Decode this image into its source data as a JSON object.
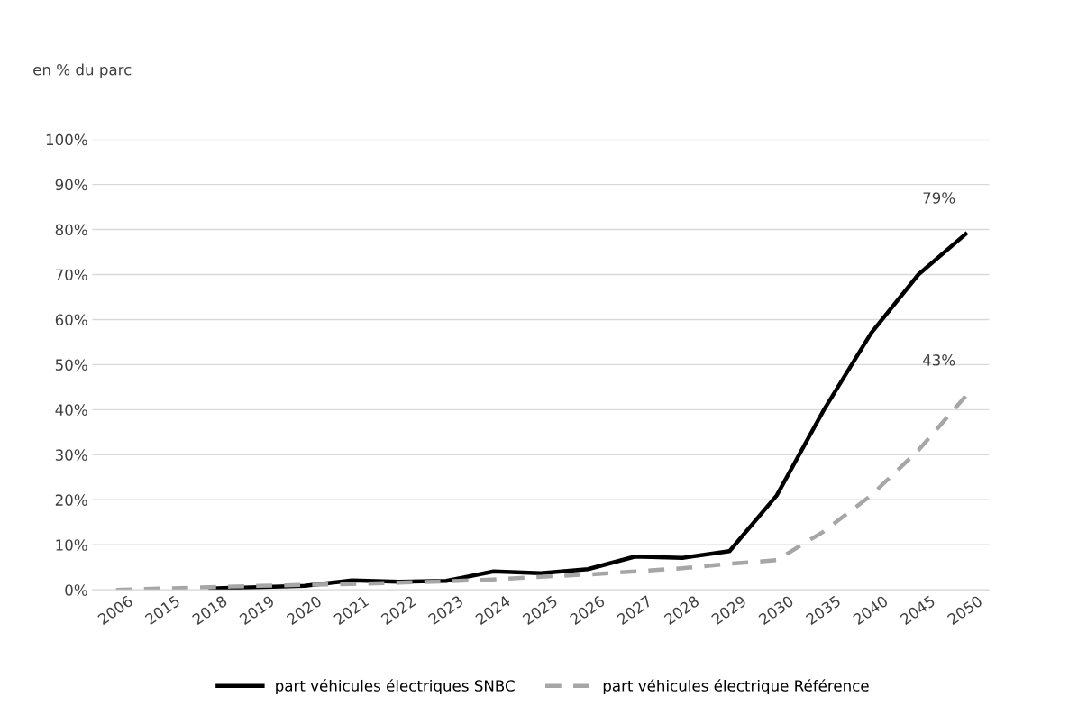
{
  "chart_data": {
    "type": "line",
    "ylabel": "en % du parc",
    "categories": [
      "2006",
      "2015",
      "2018",
      "2019",
      "2020",
      "2021",
      "2022",
      "2023",
      "2024",
      "2025",
      "2026",
      "2027",
      "2028",
      "2029",
      "2030",
      "2035",
      "2040",
      "2045",
      "2050"
    ],
    "series": [
      {
        "name": "part véhicules électriques SNBC",
        "color": "#000000",
        "line_style": "solid",
        "values": [
          null,
          null,
          0.3,
          0.6,
          0.9,
          2.1,
          1.8,
          2.0,
          4.1,
          3.7,
          4.6,
          7.4,
          7.1,
          8.6,
          21,
          40,
          57,
          70,
          79
        ],
        "value_labels": [
          null,
          null,
          null,
          null,
          null,
          null,
          null,
          null,
          null,
          null,
          null,
          null,
          null,
          null,
          null,
          null,
          null,
          null,
          "79%"
        ]
      },
      {
        "name": "part véhicules électrique Référence",
        "color": "#a6a6a6",
        "line_style": "dashed",
        "values": [
          0,
          0.3,
          0.6,
          0.9,
          1.1,
          1.3,
          1.6,
          1.9,
          2.3,
          2.9,
          3.4,
          4.1,
          4.8,
          5.8,
          6.6,
          13,
          21,
          31,
          43
        ],
        "value_labels": [
          null,
          null,
          null,
          null,
          null,
          null,
          null,
          null,
          null,
          null,
          null,
          null,
          null,
          null,
          null,
          null,
          null,
          null,
          "43%"
        ]
      }
    ],
    "ylim": [
      0,
      100
    ],
    "yticks": [
      {
        "value": 0,
        "label": "0%"
      },
      {
        "value": 10,
        "label": "10%"
      },
      {
        "value": 20,
        "label": "20%"
      },
      {
        "value": 30,
        "label": "30%"
      },
      {
        "value": 40,
        "label": "40%"
      },
      {
        "value": 50,
        "label": "50%"
      },
      {
        "value": 60,
        "label": "60%"
      },
      {
        "value": 70,
        "label": "70%"
      },
      {
        "value": 80,
        "label": "80%"
      },
      {
        "value": 90,
        "label": "90%"
      },
      {
        "value": 100,
        "label": "100%"
      }
    ],
    "grid": "y",
    "legend": "bottom",
    "marker": "none"
  }
}
